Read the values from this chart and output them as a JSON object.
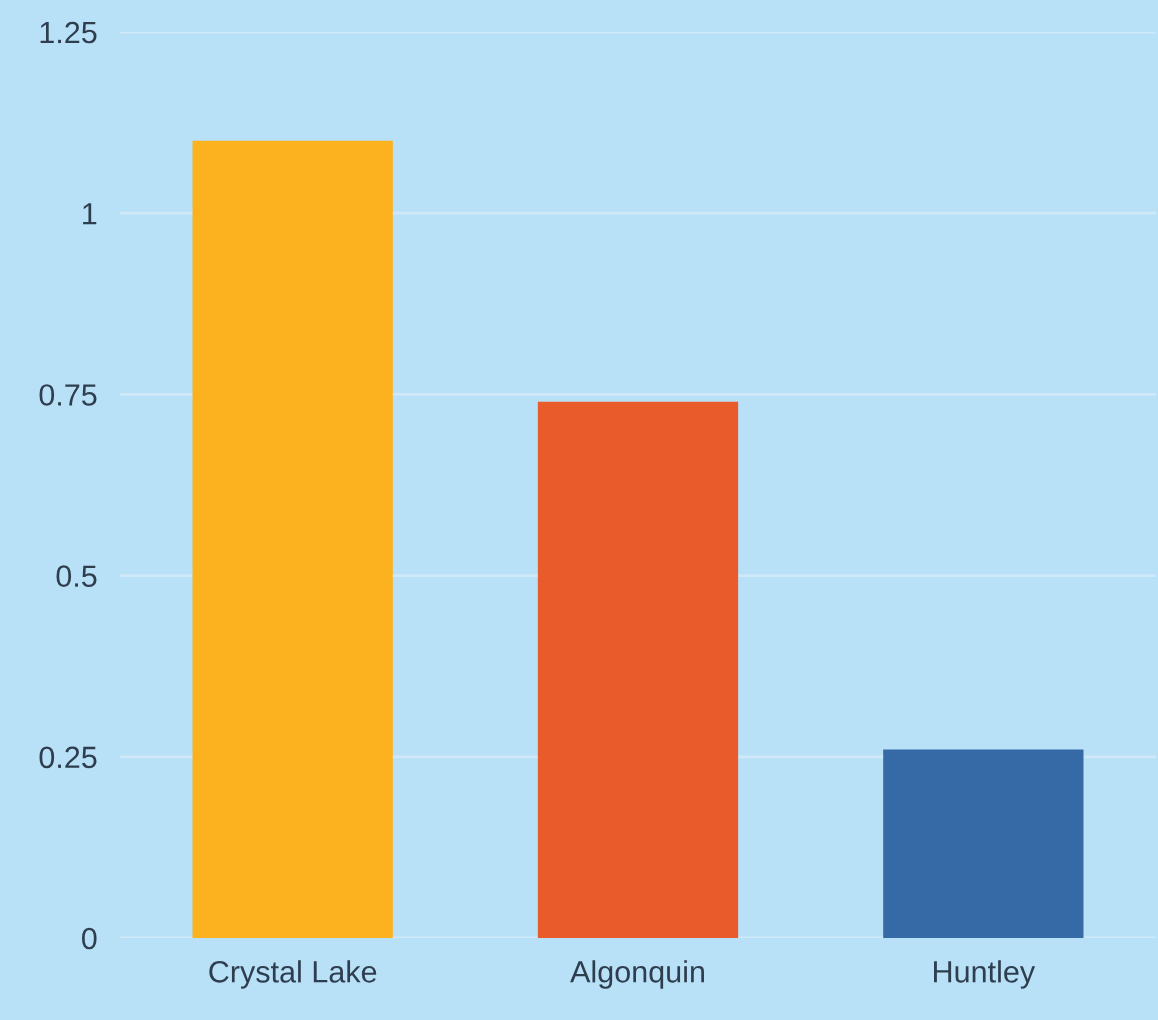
{
  "chart_data": {
    "type": "bar",
    "categories": [
      "Crystal Lake",
      "Algonquin",
      "Huntley"
    ],
    "values": [
      1.1,
      0.74,
      0.26
    ],
    "colors": [
      "#fbb21e",
      "#ea5b2b",
      "#366aa6"
    ],
    "ylim": [
      0,
      1.25
    ],
    "yticks": [
      0,
      0.25,
      0.5,
      0.75,
      1,
      1.25
    ],
    "grid": "y"
  }
}
